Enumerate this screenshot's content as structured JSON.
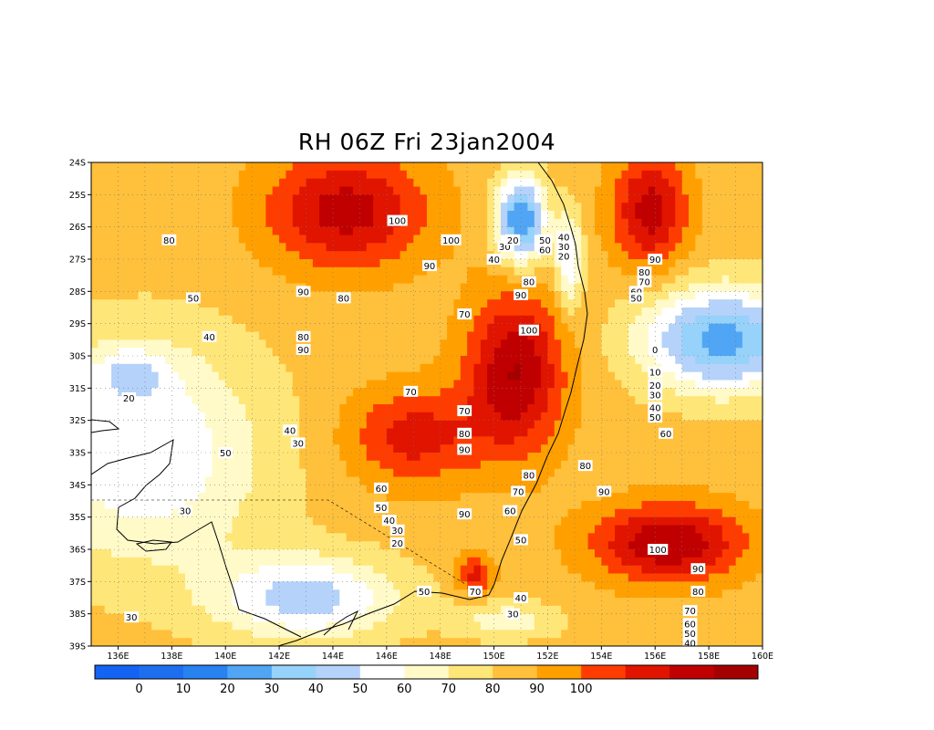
{
  "title": "RH 06Z Fri 23jan2004",
  "lat_labels": [
    "24S",
    "25S",
    "26S",
    "27S",
    "28S",
    "29S",
    "30S",
    "31S",
    "32S",
    "33S",
    "34S",
    "35S",
    "36S",
    "37S",
    "38S",
    "39S"
  ],
  "lon_labels": [
    "136E",
    "138E",
    "140E",
    "142E",
    "144E",
    "146E",
    "148E",
    "150E",
    "152E",
    "154E",
    "156E",
    "158E",
    "160E"
  ],
  "colorbar": {
    "colors": [
      "#1464f4",
      "#1e6ef0",
      "#2882f0",
      "#50a5f5",
      "#96d2fa",
      "#b4d2fa",
      "#ffffff",
      "#fffac8",
      "#ffe678",
      "#ffc03c",
      "#ffa000",
      "#ff3c00",
      "#e11400",
      "#c00000",
      "#a50000"
    ],
    "labels": [
      "0",
      "10",
      "20",
      "30",
      "40",
      "50",
      "60",
      "70",
      "80",
      "90",
      "100"
    ]
  },
  "contour_labels": [
    {
      "text": "100",
      "lon": 146.4,
      "lat": -25.8
    },
    {
      "text": "100",
      "lon": 148.4,
      "lat": -26.4
    },
    {
      "text": "90",
      "lon": 147.6,
      "lat": -27.2
    },
    {
      "text": "90",
      "lon": 142.9,
      "lat": -28.0
    },
    {
      "text": "80",
      "lon": 144.4,
      "lat": -28.2
    },
    {
      "text": "80",
      "lon": 137.9,
      "lat": -26.4
    },
    {
      "text": "50",
      "lon": 138.8,
      "lat": -28.2
    },
    {
      "text": "40",
      "lon": 139.4,
      "lat": -29.4
    },
    {
      "text": "20",
      "lon": 136.4,
      "lat": -31.3
    },
    {
      "text": "80",
      "lon": 142.9,
      "lat": -29.4
    },
    {
      "text": "90",
      "lon": 142.9,
      "lat": -29.8
    },
    {
      "text": "70",
      "lon": 146.9,
      "lat": -31.1
    },
    {
      "text": "70",
      "lon": 148.9,
      "lat": -28.7
    },
    {
      "text": "90",
      "lon": 151.0,
      "lat": -28.1
    },
    {
      "text": "80",
      "lon": 151.3,
      "lat": -27.7
    },
    {
      "text": "40",
      "lon": 150.0,
      "lat": -27.0
    },
    {
      "text": "30",
      "lon": 150.4,
      "lat": -26.6
    },
    {
      "text": "20",
      "lon": 150.7,
      "lat": -26.4
    },
    {
      "text": "50",
      "lon": 151.9,
      "lat": -26.4
    },
    {
      "text": "60",
      "lon": 151.9,
      "lat": -26.7
    },
    {
      "text": "40",
      "lon": 152.6,
      "lat": -26.3
    },
    {
      "text": "30",
      "lon": 152.6,
      "lat": -26.6
    },
    {
      "text": "20",
      "lon": 152.6,
      "lat": -26.9
    },
    {
      "text": "100",
      "lon": 151.3,
      "lat": -29.2
    },
    {
      "text": "70",
      "lon": 148.9,
      "lat": -31.7
    },
    {
      "text": "80",
      "lon": 148.9,
      "lat": -32.4
    },
    {
      "text": "90",
      "lon": 148.9,
      "lat": -32.9
    },
    {
      "text": "40",
      "lon": 142.4,
      "lat": -32.3
    },
    {
      "text": "30",
      "lon": 142.7,
      "lat": -32.7
    },
    {
      "text": "50",
      "lon": 140.0,
      "lat": -33.0
    },
    {
      "text": "60",
      "lon": 145.8,
      "lat": -34.1
    },
    {
      "text": "50",
      "lon": 145.8,
      "lat": -34.7
    },
    {
      "text": "40",
      "lon": 146.1,
      "lat": -35.1
    },
    {
      "text": "30",
      "lon": 146.4,
      "lat": -35.4
    },
    {
      "text": "20",
      "lon": 146.4,
      "lat": -35.8
    },
    {
      "text": "90",
      "lon": 148.9,
      "lat": -34.9
    },
    {
      "text": "80",
      "lon": 151.3,
      "lat": -33.7
    },
    {
      "text": "70",
      "lon": 150.9,
      "lat": -34.2
    },
    {
      "text": "60",
      "lon": 150.6,
      "lat": -34.8
    },
    {
      "text": "50",
      "lon": 151.0,
      "lat": -35.7
    },
    {
      "text": "80",
      "lon": 153.4,
      "lat": -33.4
    },
    {
      "text": "90",
      "lon": 154.1,
      "lat": -34.2
    },
    {
      "text": "100",
      "lon": 156.1,
      "lat": -36.0
    },
    {
      "text": "90",
      "lon": 157.6,
      "lat": -36.6
    },
    {
      "text": "80",
      "lon": 157.6,
      "lat": -37.3
    },
    {
      "text": "70",
      "lon": 157.3,
      "lat": -37.9
    },
    {
      "text": "60",
      "lon": 157.3,
      "lat": -38.3
    },
    {
      "text": "50",
      "lon": 157.3,
      "lat": -38.6
    },
    {
      "text": "40",
      "lon": 157.3,
      "lat": -38.9
    },
    {
      "text": "70",
      "lon": 149.3,
      "lat": -37.3
    },
    {
      "text": "50",
      "lon": 147.4,
      "lat": -37.3
    },
    {
      "text": "40",
      "lon": 151.0,
      "lat": -37.5
    },
    {
      "text": "30",
      "lon": 150.7,
      "lat": -38.0
    },
    {
      "text": "30",
      "lon": 136.5,
      "lat": -38.1
    },
    {
      "text": "30",
      "lon": 138.5,
      "lat": -34.8
    },
    {
      "text": "90",
      "lon": 156.0,
      "lat": -27.0
    },
    {
      "text": "80",
      "lon": 155.6,
      "lat": -27.4
    },
    {
      "text": "70",
      "lon": 155.6,
      "lat": -27.7
    },
    {
      "text": "60",
      "lon": 155.3,
      "lat": -28.0
    },
    {
      "text": "50",
      "lon": 155.3,
      "lat": -28.2
    },
    {
      "text": "0",
      "lon": 156.0,
      "lat": -29.8
    },
    {
      "text": "10",
      "lon": 156.0,
      "lat": -30.5
    },
    {
      "text": "20",
      "lon": 156.0,
      "lat": -30.9
    },
    {
      "text": "30",
      "lon": 156.0,
      "lat": -31.2
    },
    {
      "text": "40",
      "lon": 156.0,
      "lat": -31.6
    },
    {
      "text": "50",
      "lon": 156.0,
      "lat": -31.9
    },
    {
      "text": "60",
      "lon": 156.4,
      "lat": -32.4
    }
  ]
}
